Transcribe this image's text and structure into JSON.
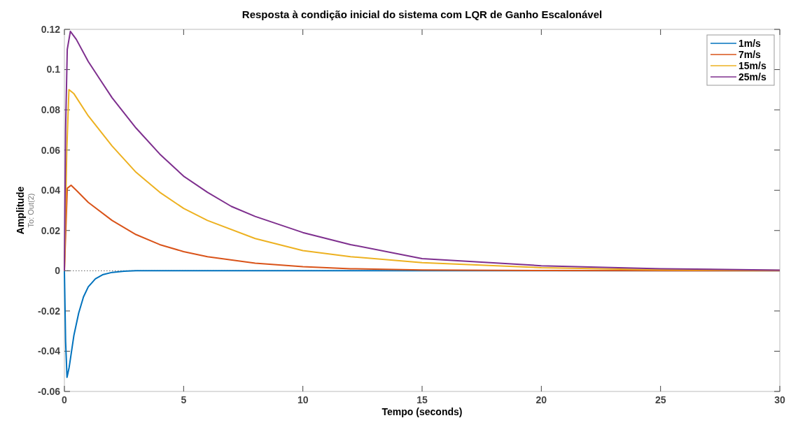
{
  "chart_data": {
    "type": "line",
    "title": "Resposta à condição inicial do sistema com LQR de Ganho Escalonável",
    "xlabel": "Tempo (seconds)",
    "ylabel": "Amplitude",
    "annotations": [
      "To: Out(2)"
    ],
    "xlim": [
      0,
      30
    ],
    "ylim": [
      -0.06,
      0.12
    ],
    "xticks": [
      0,
      5,
      10,
      15,
      20,
      25,
      30
    ],
    "yticks": [
      -0.06,
      -0.04,
      -0.02,
      0,
      0.02,
      0.04,
      0.06,
      0.08,
      0.1,
      0.12
    ],
    "grid": false,
    "legend": "top right",
    "line_style": "solid",
    "ref_lines": [
      {
        "axis": "y",
        "value": 0,
        "color": "#333333",
        "line_style": "dotted"
      }
    ],
    "series": [
      {
        "name": "1m/s",
        "color": "#0072bd",
        "x": [
          0,
          0.05,
          0.11,
          0.2,
          0.4,
          0.6,
          0.8,
          1,
          1.3,
          1.6,
          2,
          2.5,
          3,
          30
        ],
        "values": [
          0,
          -0.035,
          -0.053,
          -0.048,
          -0.032,
          -0.021,
          -0.013,
          -0.008,
          -0.004,
          -0.002,
          -0.0008,
          -0.0002,
          0,
          0
        ]
      },
      {
        "name": "7m/s",
        "color": "#d95319",
        "x": [
          0,
          0.12,
          0.28,
          0.5,
          1,
          2,
          3,
          4,
          5,
          6,
          8,
          10,
          12,
          15,
          20,
          30
        ],
        "values": [
          0,
          0.041,
          0.0425,
          0.04,
          0.034,
          0.025,
          0.018,
          0.013,
          0.0095,
          0.007,
          0.0038,
          0.002,
          0.001,
          0.0004,
          0.0001,
          0
        ]
      },
      {
        "name": "15m/s",
        "color": "#edb120",
        "x": [
          0,
          0.1,
          0.19,
          0.4,
          1,
          2,
          3,
          4,
          5,
          6,
          8,
          10,
          12,
          15,
          20,
          25,
          30
        ],
        "values": [
          0,
          0.06,
          0.09,
          0.088,
          0.077,
          0.062,
          0.049,
          0.039,
          0.031,
          0.025,
          0.016,
          0.01,
          0.007,
          0.004,
          0.0015,
          0.0005,
          0.0002
        ]
      },
      {
        "name": "25m/s",
        "color": "#7e2f8e",
        "x": [
          0,
          0.05,
          0.12,
          0.25,
          0.5,
          1,
          1.5,
          2,
          3,
          4,
          5,
          6,
          7,
          8,
          10,
          12,
          15,
          20,
          25,
          30
        ],
        "values": [
          0,
          0.07,
          0.11,
          0.119,
          0.115,
          0.104,
          0.095,
          0.086,
          0.071,
          0.058,
          0.047,
          0.039,
          0.032,
          0.027,
          0.019,
          0.013,
          0.006,
          0.0025,
          0.001,
          0.0003
        ]
      }
    ]
  }
}
